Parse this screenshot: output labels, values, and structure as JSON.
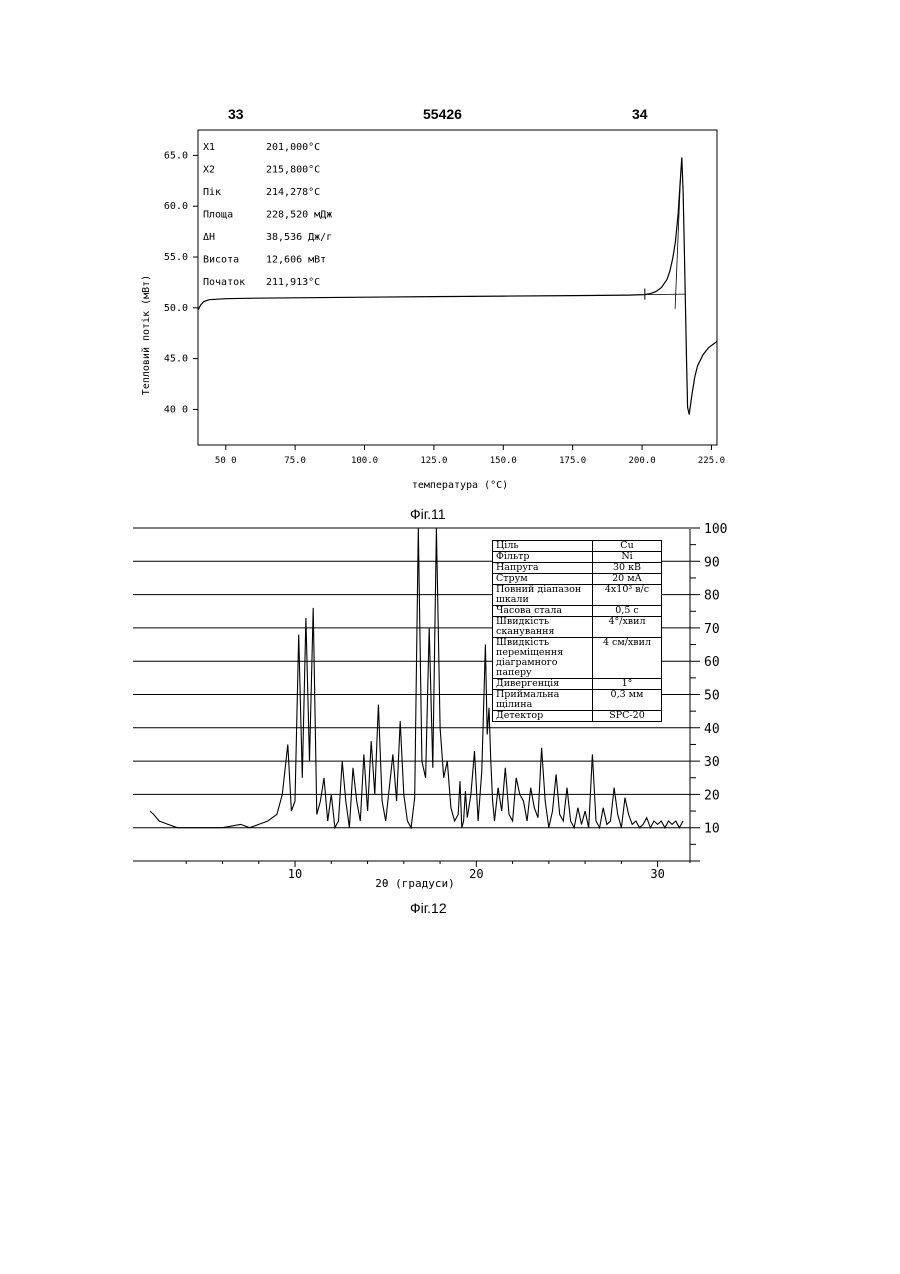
{
  "page": {
    "page_left": "33",
    "patent_number": "55426",
    "page_right": "34"
  },
  "figures": {
    "fig11_caption": "Фіг.11",
    "fig12_caption": "Фіг.12"
  },
  "dsc_annotations": [
    {
      "label": "X1",
      "value": "201,000°C"
    },
    {
      "label": "X2",
      "value": "215,800°C"
    },
    {
      "label": "Пік",
      "value": "214,278°C"
    },
    {
      "label": "Площа",
      "value": "228,520 мДж"
    },
    {
      "label": "ΔH",
      "value": "38,536 Дж/г"
    },
    {
      "label": "Висота",
      "value": "12,606 мВт"
    },
    {
      "label": "Початок",
      "value": "211,913°C"
    }
  ],
  "xrd_table": [
    {
      "param": "Ціль",
      "value": "Cu"
    },
    {
      "param": "Фільтр",
      "value": "Ni"
    },
    {
      "param": "Напруга",
      "value": "30 кВ"
    },
    {
      "param": "Струм",
      "value": "20 мА"
    },
    {
      "param": "Повний діапазон шкали",
      "value": "4x10³ в/с"
    },
    {
      "param": "Часова стала",
      "value": "0,5 с"
    },
    {
      "param": "Швидкість сканування",
      "value": "4°/хвил"
    },
    {
      "param": "Швидкість переміщення діаграмного паперу",
      "value": "4 см/хвил"
    },
    {
      "param": "Дивергенція",
      "value": "1°"
    },
    {
      "param": "Приймальна щілина",
      "value": "0,3 мм"
    },
    {
      "param": "Детектор",
      "value": "SPC-20"
    }
  ],
  "chart_data": [
    {
      "type": "line",
      "xlabel": "температура (°C)",
      "ylabel": "Тепловий потік (мВт)",
      "xlim": [
        40,
        227
      ],
      "ylim": [
        36.5,
        67.5
      ],
      "xticks": [
        "50 0",
        "75.0",
        "100.0",
        "125.0",
        "150.0",
        "175.0",
        "200.0",
        "225.0"
      ],
      "xtick_values": [
        50,
        75,
        100,
        125,
        150,
        175,
        200,
        225
      ],
      "yticks": [
        "65.0",
        "60.0",
        "55.0",
        "50.0",
        "45.0",
        "40 0"
      ],
      "ytick_values": [
        65,
        60,
        55,
        50,
        45,
        40
      ],
      "series": [
        {
          "x": [
            40,
            41,
            42,
            44,
            47,
            50,
            60,
            80,
            100,
            125,
            150,
            175,
            195,
            201,
            203,
            205,
            207,
            209,
            210,
            211,
            212,
            213,
            213.6,
            214.3,
            214.8,
            215.2,
            215.6,
            216,
            216.4,
            217,
            218,
            219,
            220,
            222,
            224,
            227
          ],
          "y": [
            49.8,
            50.3,
            50.6,
            50.8,
            50.85,
            50.9,
            50.95,
            51.0,
            51.05,
            51.1,
            51.15,
            51.2,
            51.25,
            51.3,
            51.4,
            51.6,
            52.0,
            52.8,
            53.6,
            54.8,
            56.5,
            59.2,
            61.8,
            64.8,
            61.5,
            56.0,
            50.5,
            45.0,
            40.2,
            39.5,
            41.5,
            43.2,
            44.3,
            45.4,
            46.1,
            46.7
          ]
        }
      ]
    },
    {
      "type": "line",
      "xlabel": "2θ (градуси)",
      "ylabel": "",
      "xlim": [
        2,
        31.4
      ],
      "ylim": [
        0,
        100
      ],
      "xticks": [
        "10",
        "20",
        "30"
      ],
      "xtick_values": [
        10,
        20,
        30
      ],
      "yticks": [
        "10",
        "20",
        "30",
        "40",
        "50",
        "60",
        "70",
        "80",
        "90",
        "100"
      ],
      "ytick_values": [
        10,
        20,
        30,
        40,
        50,
        60,
        70,
        80,
        90,
        100
      ],
      "series": [
        {
          "x": [
            2.0,
            2.2,
            2.5,
            3.0,
            3.5,
            4.0,
            5.0,
            6.0,
            7.0,
            7.5,
            8.0,
            8.5,
            9.0,
            9.3,
            9.6,
            9.8,
            10.0,
            10.2,
            10.4,
            10.6,
            10.8,
            11.0,
            11.2,
            11.4,
            11.6,
            11.8,
            12.0,
            12.2,
            12.4,
            12.6,
            12.8,
            13.0,
            13.2,
            13.4,
            13.6,
            13.8,
            14.0,
            14.2,
            14.4,
            14.6,
            14.8,
            15.0,
            15.2,
            15.4,
            15.6,
            15.8,
            16.0,
            16.2,
            16.4,
            16.6,
            16.8,
            17.0,
            17.2,
            17.4,
            17.6,
            17.8,
            18.0,
            18.2,
            18.4,
            18.6,
            18.8,
            19.0,
            19.1,
            19.2,
            19.3,
            19.4,
            19.5,
            19.7,
            19.9,
            20.1,
            20.3,
            20.5,
            20.6,
            20.7,
            20.8,
            20.9,
            21.0,
            21.2,
            21.4,
            21.6,
            21.8,
            22.0,
            22.2,
            22.4,
            22.6,
            22.8,
            23.0,
            23.2,
            23.4,
            23.6,
            23.8,
            24.0,
            24.2,
            24.4,
            24.6,
            24.8,
            25.0,
            25.2,
            25.4,
            25.6,
            25.8,
            26.0,
            26.2,
            26.4,
            26.6,
            26.8,
            27.0,
            27.2,
            27.4,
            27.6,
            27.8,
            28.0,
            28.2,
            28.4,
            28.6,
            28.8,
            29.0,
            29.2,
            29.4,
            29.6,
            29.8,
            30.0,
            30.2,
            30.4,
            30.6,
            30.8,
            31.0,
            31.2,
            31.4
          ],
          "y": [
            15,
            14,
            12,
            11,
            10,
            10,
            10,
            10,
            11,
            10,
            11,
            12,
            14,
            20,
            35,
            15,
            18,
            68,
            25,
            73,
            30,
            76,
            14,
            18,
            25,
            12,
            20,
            10,
            12,
            30,
            18,
            10,
            28,
            18,
            12,
            32,
            15,
            36,
            20,
            47,
            18,
            12,
            22,
            32,
            18,
            42,
            20,
            12,
            10,
            19,
            100,
            30,
            25,
            70,
            28,
            100,
            40,
            25,
            30,
            16,
            12,
            14,
            24,
            10,
            12,
            21,
            13,
            20,
            33,
            12,
            27,
            65,
            38,
            46,
            30,
            18,
            12,
            22,
            15,
            28,
            14,
            12,
            25,
            20,
            18,
            12,
            22,
            16,
            13,
            34,
            18,
            10,
            15,
            26,
            14,
            12,
            22,
            12,
            10,
            16,
            11,
            15,
            10,
            32,
            12,
            10,
            16,
            11,
            12,
            22,
            14,
            10,
            19,
            14,
            11,
            12,
            10,
            11,
            13,
            10,
            12,
            11,
            12,
            10,
            12,
            11,
            12,
            10,
            12
          ]
        }
      ]
    }
  ]
}
